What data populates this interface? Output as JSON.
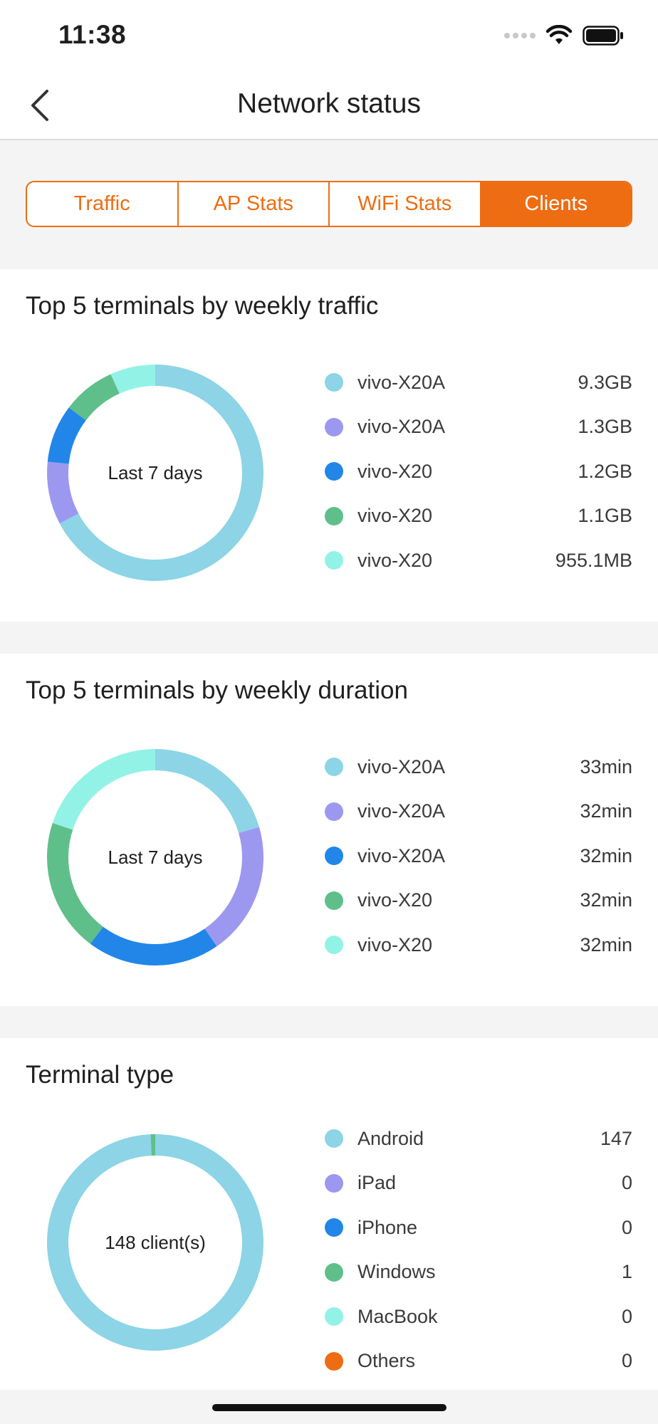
{
  "status_bar": {
    "time": "11:38"
  },
  "nav": {
    "title": "Network status"
  },
  "tabs": [
    {
      "label": "Traffic",
      "active": false
    },
    {
      "label": "AP Stats",
      "active": false
    },
    {
      "label": "WiFi Stats",
      "active": false
    },
    {
      "label": "Clients",
      "active": true
    }
  ],
  "colors": {
    "accent": "#ee6d12",
    "series": [
      "#8cd4e6",
      "#9c98f0",
      "#2186e8",
      "#5fbf8a",
      "#93f2e6",
      "#ee6d12"
    ]
  },
  "cards": [
    {
      "title": "Top 5 terminals by weekly traffic",
      "center_label": "Last 7 days",
      "legend": [
        {
          "name": "vivo-X20A",
          "value": "9.3GB"
        },
        {
          "name": "vivo-X20A",
          "value": "1.3GB"
        },
        {
          "name": "vivo-X20",
          "value": "1.2GB"
        },
        {
          "name": "vivo-X20",
          "value": "1.1GB"
        },
        {
          "name": "vivo-X20",
          "value": "955.1MB"
        }
      ]
    },
    {
      "title": "Top 5 terminals by weekly duration",
      "center_label": "Last 7 days",
      "legend": [
        {
          "name": "vivo-X20A",
          "value": "33min"
        },
        {
          "name": "vivo-X20A",
          "value": "32min"
        },
        {
          "name": "vivo-X20A",
          "value": "32min"
        },
        {
          "name": "vivo-X20",
          "value": "32min"
        },
        {
          "name": "vivo-X20",
          "value": "32min"
        }
      ]
    },
    {
      "title": "Terminal type",
      "center_label": "148 client(s)",
      "legend": [
        {
          "name": "Android",
          "value": "147"
        },
        {
          "name": "iPad",
          "value": "0"
        },
        {
          "name": "iPhone",
          "value": "0"
        },
        {
          "name": "Windows",
          "value": "1"
        },
        {
          "name": "MacBook",
          "value": "0"
        },
        {
          "name": "Others",
          "value": "0"
        }
      ]
    }
  ],
  "chart_data": [
    {
      "type": "pie",
      "title": "Top 5 terminals by weekly traffic",
      "unit": "MB",
      "categories": [
        "vivo-X20A",
        "vivo-X20A",
        "vivo-X20",
        "vivo-X20",
        "vivo-X20"
      ],
      "values": [
        9523.2,
        1331.2,
        1228.8,
        1126.4,
        955.1
      ]
    },
    {
      "type": "pie",
      "title": "Top 5 terminals by weekly duration",
      "unit": "min",
      "categories": [
        "vivo-X20A",
        "vivo-X20A",
        "vivo-X20A",
        "vivo-X20",
        "vivo-X20"
      ],
      "values": [
        33,
        32,
        32,
        32,
        32
      ]
    },
    {
      "type": "pie",
      "title": "Terminal type",
      "categories": [
        "Android",
        "iPad",
        "iPhone",
        "Windows",
        "MacBook",
        "Others"
      ],
      "values": [
        147,
        0,
        0,
        1,
        0,
        0
      ]
    }
  ]
}
